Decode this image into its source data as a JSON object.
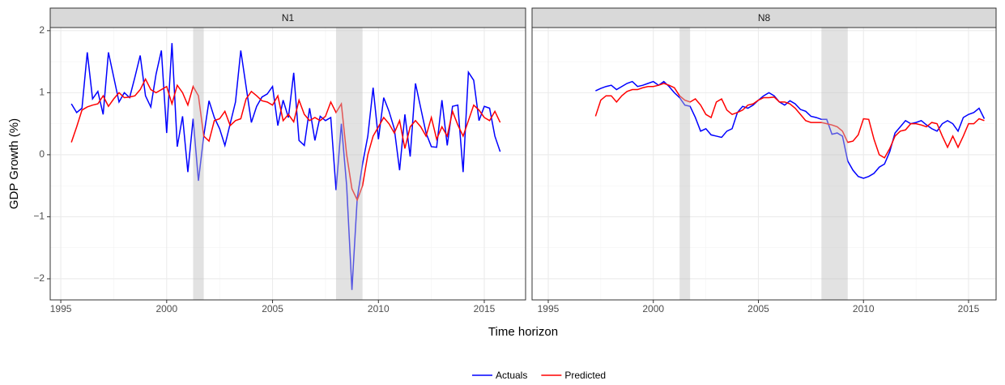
{
  "chart_data": [
    {
      "type": "line",
      "title": "N1",
      "y_label": "GDP Growth (%)",
      "x_label": "Time horizon",
      "x": [
        1995.5,
        1995.75,
        1996,
        1996.25,
        1996.5,
        1996.75,
        1997,
        1997.25,
        1997.5,
        1997.75,
        1998,
        1998.25,
        1998.5,
        1998.75,
        1999,
        1999.25,
        1999.5,
        1999.75,
        2000,
        2000.25,
        2000.5,
        2000.75,
        2001,
        2001.25,
        2001.5,
        2001.75,
        2002,
        2002.25,
        2002.5,
        2002.75,
        2003,
        2003.25,
        2003.5,
        2003.75,
        2004,
        2004.25,
        2004.5,
        2004.75,
        2005,
        2005.25,
        2005.5,
        2005.75,
        2006,
        2006.25,
        2006.5,
        2006.75,
        2007,
        2007.25,
        2007.5,
        2007.75,
        2008,
        2008.25,
        2008.5,
        2008.75,
        2009,
        2009.25,
        2009.5,
        2009.75,
        2010,
        2010.25,
        2010.5,
        2010.75,
        2011,
        2011.25,
        2011.5,
        2011.75,
        2012,
        2012.25,
        2012.5,
        2012.75,
        2013,
        2013.25,
        2013.5,
        2013.75,
        2014,
        2014.25,
        2014.5,
        2014.75,
        2015,
        2015.25,
        2015.5,
        2015.75
      ],
      "series": [
        {
          "name": "Actuals",
          "color": "#0000ff",
          "values": [
            0.82,
            0.68,
            0.75,
            1.65,
            0.9,
            1.02,
            0.65,
            1.65,
            1.25,
            0.85,
            1.0,
            0.92,
            1.25,
            1.6,
            0.95,
            0.77,
            1.3,
            1.68,
            0.35,
            1.8,
            0.13,
            0.62,
            -0.28,
            0.58,
            -0.42,
            0.3,
            0.87,
            0.6,
            0.42,
            0.15,
            0.5,
            0.85,
            1.68,
            1.1,
            0.52,
            0.78,
            0.93,
            0.98,
            1.1,
            0.47,
            0.88,
            0.6,
            1.32,
            0.23,
            0.15,
            0.75,
            0.23,
            0.62,
            0.55,
            0.6,
            -0.57,
            0.5,
            -0.5,
            -2.18,
            -0.7,
            -0.15,
            0.3,
            1.08,
            0.25,
            0.92,
            0.7,
            0.42,
            -0.25,
            0.65,
            -0.03,
            1.15,
            0.75,
            0.35,
            0.13,
            0.12,
            0.88,
            0.15,
            0.78,
            0.8,
            -0.28,
            1.33,
            1.2,
            0.55,
            0.78,
            0.75,
            0.3,
            0.05
          ]
        },
        {
          "name": "Predicted",
          "color": "#ff0000",
          "values": [
            0.2,
            0.45,
            0.72,
            0.77,
            0.8,
            0.82,
            0.95,
            0.78,
            0.9,
            1.0,
            0.92,
            0.93,
            0.95,
            1.05,
            1.22,
            1.05,
            1.0,
            1.05,
            1.1,
            0.82,
            1.12,
            1.0,
            0.8,
            1.1,
            0.95,
            0.3,
            0.22,
            0.55,
            0.58,
            0.7,
            0.47,
            0.55,
            0.58,
            0.9,
            1.02,
            0.95,
            0.87,
            0.85,
            0.8,
            0.95,
            0.55,
            0.65,
            0.53,
            0.88,
            0.65,
            0.55,
            0.6,
            0.55,
            0.62,
            0.85,
            0.68,
            0.82,
            0.0,
            -0.55,
            -0.73,
            -0.5,
            0.0,
            0.3,
            0.45,
            0.6,
            0.5,
            0.35,
            0.55,
            0.1,
            0.45,
            0.55,
            0.45,
            0.3,
            0.6,
            0.25,
            0.45,
            0.3,
            0.7,
            0.48,
            0.3,
            0.55,
            0.8,
            0.72,
            0.6,
            0.55,
            0.7,
            0.52
          ]
        }
      ],
      "shaded": [
        [
          2001.25,
          2001.75
        ],
        [
          2008.0,
          2009.25
        ]
      ],
      "xlim": [
        1994.5,
        2016.95
      ],
      "xticks": [
        1995,
        2000,
        2005,
        2010,
        2015
      ],
      "ylim": [
        -2.34,
        2.05
      ],
      "yticks": [
        {
          "value": -2,
          "label": "−2"
        },
        {
          "value": -1,
          "label": "−1"
        },
        0,
        1,
        2
      ],
      "grid": true,
      "legend": "bottom"
    },
    {
      "type": "line",
      "title": "N8",
      "x": [
        1997.25,
        1997.5,
        1997.75,
        1998,
        1998.25,
        1998.5,
        1998.75,
        1999,
        1999.25,
        1999.5,
        1999.75,
        2000,
        2000.25,
        2000.5,
        2000.75,
        2001,
        2001.25,
        2001.5,
        2001.75,
        2002,
        2002.25,
        2002.5,
        2002.75,
        2003,
        2003.25,
        2003.5,
        2003.75,
        2004,
        2004.25,
        2004.5,
        2004.75,
        2005,
        2005.25,
        2005.5,
        2005.75,
        2006,
        2006.25,
        2006.5,
        2006.75,
        2007,
        2007.25,
        2007.5,
        2007.75,
        2008,
        2008.25,
        2008.5,
        2008.75,
        2009,
        2009.25,
        2009.5,
        2009.75,
        2010,
        2010.25,
        2010.5,
        2010.75,
        2011,
        2011.25,
        2011.5,
        2011.75,
        2012,
        2012.25,
        2012.5,
        2012.75,
        2013,
        2013.25,
        2013.5,
        2013.75,
        2014,
        2014.25,
        2014.5,
        2014.75,
        2015,
        2015.25,
        2015.5,
        2015.75
      ],
      "series": [
        {
          "color": "#0000ff",
          "values": [
            1.03,
            1.07,
            1.1,
            1.12,
            1.05,
            1.1,
            1.15,
            1.18,
            1.1,
            1.12,
            1.15,
            1.18,
            1.12,
            1.18,
            1.1,
            1.0,
            0.92,
            0.8,
            0.78,
            0.6,
            0.38,
            0.42,
            0.32,
            0.3,
            0.28,
            0.38,
            0.42,
            0.68,
            0.78,
            0.75,
            0.8,
            0.88,
            0.95,
            1.0,
            0.95,
            0.85,
            0.8,
            0.87,
            0.82,
            0.73,
            0.7,
            0.62,
            0.6,
            0.57,
            0.57,
            0.33,
            0.35,
            0.3,
            -0.1,
            -0.25,
            -0.35,
            -0.38,
            -0.35,
            -0.3,
            -0.2,
            -0.15,
            0.05,
            0.35,
            0.45,
            0.55,
            0.5,
            0.52,
            0.55,
            0.48,
            0.42,
            0.38,
            0.5,
            0.55,
            0.5,
            0.38,
            0.6,
            0.65,
            0.68,
            0.75,
            0.58
          ]
        },
        {
          "color": "#ff0000",
          "values": [
            0.62,
            0.88,
            0.95,
            0.95,
            0.85,
            0.95,
            1.02,
            1.05,
            1.05,
            1.08,
            1.1,
            1.1,
            1.12,
            1.15,
            1.12,
            1.08,
            0.95,
            0.88,
            0.85,
            0.9,
            0.8,
            0.65,
            0.6,
            0.85,
            0.9,
            0.72,
            0.65,
            0.68,
            0.72,
            0.8,
            0.82,
            0.88,
            0.92,
            0.92,
            0.93,
            0.85,
            0.85,
            0.82,
            0.75,
            0.65,
            0.55,
            0.52,
            0.52,
            0.52,
            0.5,
            0.48,
            0.45,
            0.38,
            0.2,
            0.22,
            0.32,
            0.58,
            0.57,
            0.25,
            0.0,
            -0.05,
            0.1,
            0.3,
            0.38,
            0.4,
            0.5,
            0.5,
            0.48,
            0.45,
            0.52,
            0.5,
            0.3,
            0.12,
            0.3,
            0.12,
            0.3,
            0.5,
            0.5,
            0.58,
            0.55
          ]
        }
      ],
      "shaded": [
        [
          2001.25,
          2001.75
        ],
        [
          2008.0,
          2009.25
        ]
      ],
      "xlim": [
        1994.23,
        2016.31
      ],
      "xticks": [
        1995,
        2000,
        2005,
        2010,
        2015
      ]
    }
  ]
}
